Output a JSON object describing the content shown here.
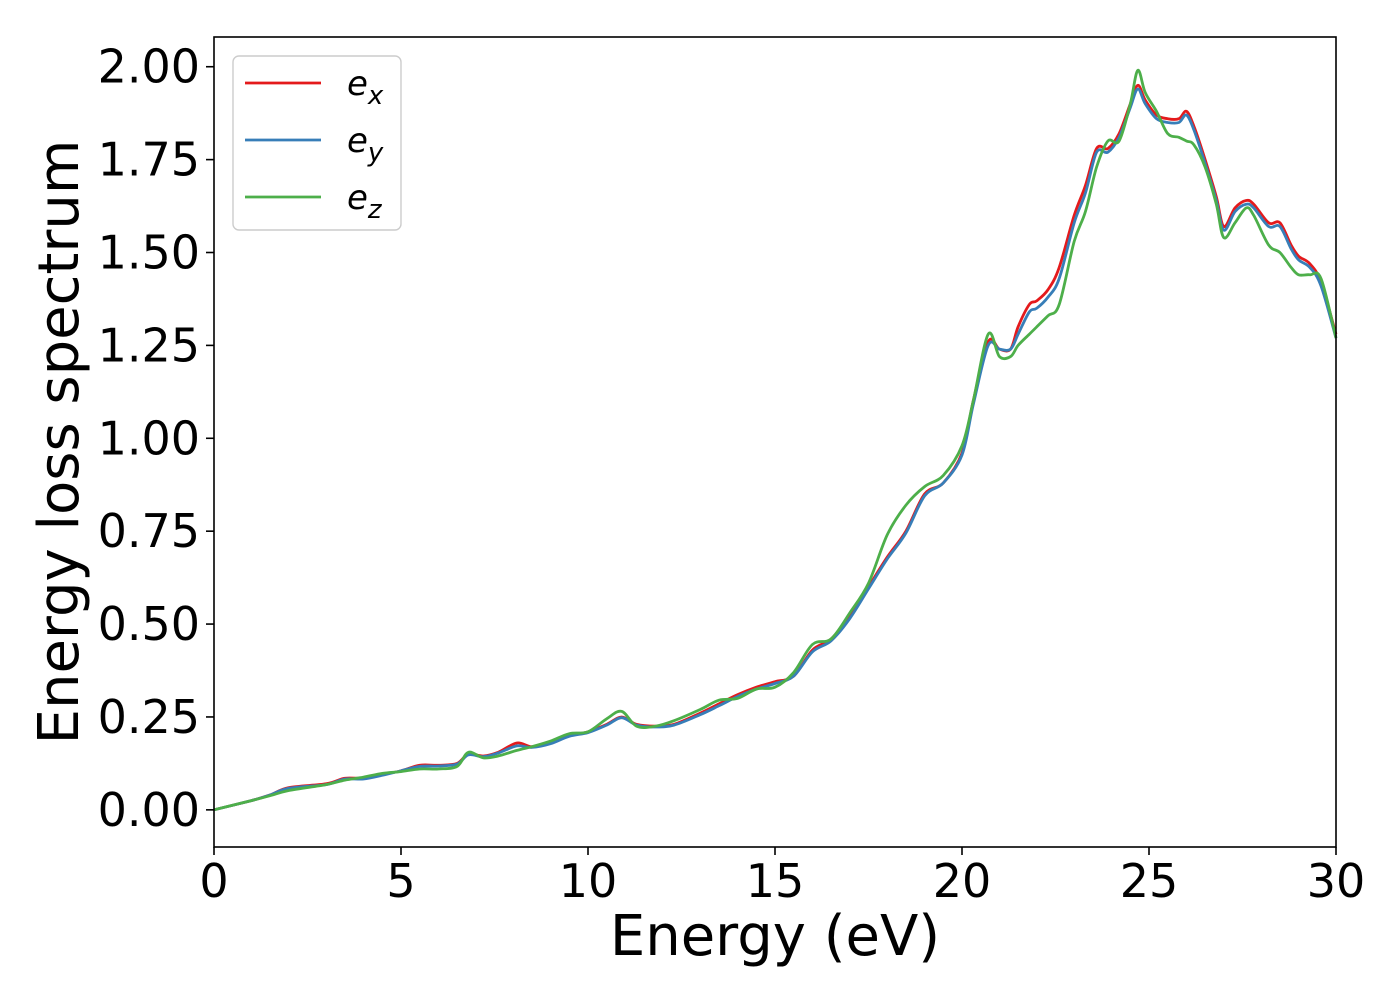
{
  "chart_data": {
    "type": "line",
    "title": "",
    "xlabel": "Energy (eV)",
    "ylabel": "Energy loss spectrum",
    "xlim": [
      0,
      30
    ],
    "ylim": [
      -0.1,
      2.08
    ],
    "xticks": [
      0,
      5,
      10,
      15,
      20,
      25,
      30
    ],
    "xtick_labels": [
      "0",
      "5",
      "10",
      "15",
      "20",
      "25",
      "30"
    ],
    "yticks": [
      0,
      0.25,
      0.5,
      0.75,
      1.0,
      1.25,
      1.5,
      1.75,
      2.0
    ],
    "ytick_labels": [
      "0.00",
      "0.25",
      "0.50",
      "0.75",
      "1.00",
      "1.25",
      "1.50",
      "1.75",
      "2.00"
    ],
    "grid": false,
    "legend_position": "top-left",
    "series": [
      {
        "name": "e",
        "subscript": "x",
        "color": "#e41a1c",
        "x": [
          0,
          1,
          1.5,
          2,
          3,
          3.5,
          4,
          4.5,
          5,
          5.5,
          6,
          6.5,
          6.8,
          7.2,
          7.6,
          8.1,
          8.5,
          9,
          9.5,
          10,
          10.5,
          10.9,
          11.3,
          11.8,
          12.3,
          13,
          13.5,
          14,
          14.5,
          15,
          15.5,
          16,
          16.5,
          17,
          17.5,
          18,
          18.5,
          19,
          19.5,
          20,
          20.3,
          20.7,
          21,
          21.3,
          21.5,
          21.8,
          22,
          22.3,
          22.6,
          23,
          23.3,
          23.6,
          23.9,
          24.2,
          24.5,
          24.7,
          24.9,
          25.2,
          25.5,
          25.8,
          26,
          26.2,
          26.5,
          26.8,
          27,
          27.3,
          27.6,
          27.8,
          28.2,
          28.5,
          28.8,
          29,
          29.3,
          29.6,
          30
        ],
        "y": [
          0,
          0.025,
          0.04,
          0.06,
          0.07,
          0.085,
          0.085,
          0.095,
          0.105,
          0.12,
          0.12,
          0.125,
          0.15,
          0.145,
          0.155,
          0.18,
          0.17,
          0.18,
          0.2,
          0.21,
          0.23,
          0.25,
          0.23,
          0.225,
          0.23,
          0.26,
          0.285,
          0.31,
          0.33,
          0.345,
          0.36,
          0.43,
          0.46,
          0.52,
          0.6,
          0.68,
          0.75,
          0.85,
          0.88,
          0.96,
          1.1,
          1.26,
          1.24,
          1.24,
          1.3,
          1.36,
          1.37,
          1.4,
          1.46,
          1.6,
          1.68,
          1.78,
          1.78,
          1.82,
          1.9,
          1.95,
          1.91,
          1.87,
          1.86,
          1.86,
          1.88,
          1.84,
          1.75,
          1.65,
          1.57,
          1.62,
          1.64,
          1.63,
          1.58,
          1.58,
          1.52,
          1.49,
          1.47,
          1.42,
          1.28
        ]
      },
      {
        "name": "e",
        "subscript": "y",
        "color": "#377eb8",
        "x": [
          0,
          1,
          1.5,
          2,
          3,
          3.5,
          4,
          4.5,
          5,
          5.5,
          6,
          6.5,
          6.8,
          7.2,
          7.6,
          8.1,
          8.5,
          9,
          9.5,
          10,
          10.5,
          10.9,
          11.3,
          11.8,
          12.3,
          13,
          13.5,
          14,
          14.5,
          15,
          15.5,
          16,
          16.5,
          17,
          17.5,
          18,
          18.5,
          19,
          19.5,
          20,
          20.3,
          20.7,
          21,
          21.3,
          21.5,
          21.8,
          22,
          22.3,
          22.6,
          23,
          23.3,
          23.6,
          23.9,
          24.2,
          24.5,
          24.7,
          24.9,
          25.2,
          25.5,
          25.8,
          26,
          26.2,
          26.5,
          26.8,
          27,
          27.3,
          27.6,
          27.8,
          28.2,
          28.5,
          28.8,
          29,
          29.3,
          29.6,
          30
        ],
        "y": [
          0,
          0.025,
          0.04,
          0.058,
          0.068,
          0.083,
          0.083,
          0.093,
          0.105,
          0.117,
          0.118,
          0.123,
          0.148,
          0.143,
          0.153,
          0.172,
          0.168,
          0.178,
          0.198,
          0.208,
          0.228,
          0.248,
          0.228,
          0.223,
          0.228,
          0.256,
          0.28,
          0.305,
          0.325,
          0.34,
          0.36,
          0.425,
          0.455,
          0.515,
          0.595,
          0.675,
          0.745,
          0.845,
          0.88,
          0.955,
          1.09,
          1.25,
          1.24,
          1.24,
          1.28,
          1.34,
          1.35,
          1.38,
          1.43,
          1.58,
          1.66,
          1.77,
          1.77,
          1.81,
          1.89,
          1.94,
          1.9,
          1.86,
          1.85,
          1.85,
          1.87,
          1.83,
          1.74,
          1.64,
          1.56,
          1.61,
          1.63,
          1.62,
          1.57,
          1.57,
          1.51,
          1.48,
          1.46,
          1.41,
          1.27
        ]
      },
      {
        "name": "e",
        "subscript": "z",
        "color": "#4daf4a",
        "x": [
          0,
          1,
          1.5,
          2,
          3,
          3.5,
          4,
          4.5,
          5,
          5.5,
          6,
          6.5,
          6.8,
          7.2,
          7.6,
          8.1,
          8.5,
          9,
          9.5,
          10,
          10.5,
          10.9,
          11.3,
          11.8,
          12.3,
          13,
          13.5,
          14,
          14.5,
          15,
          15.5,
          16,
          16.5,
          17,
          17.5,
          18,
          18.5,
          19,
          19.5,
          20,
          20.3,
          20.7,
          21,
          21.3,
          21.5,
          21.8,
          22,
          22.3,
          22.6,
          23,
          23.3,
          23.6,
          23.9,
          24.2,
          24.5,
          24.7,
          24.9,
          25.2,
          25.5,
          25.8,
          26,
          26.2,
          26.5,
          26.8,
          27,
          27.3,
          27.6,
          27.8,
          28.2,
          28.5,
          28.8,
          29,
          29.3,
          29.6,
          30
        ],
        "y": [
          0,
          0.025,
          0.038,
          0.052,
          0.068,
          0.08,
          0.088,
          0.098,
          0.103,
          0.11,
          0.11,
          0.117,
          0.155,
          0.14,
          0.145,
          0.16,
          0.17,
          0.185,
          0.205,
          0.21,
          0.245,
          0.265,
          0.225,
          0.225,
          0.24,
          0.27,
          0.295,
          0.3,
          0.325,
          0.33,
          0.37,
          0.445,
          0.46,
          0.53,
          0.61,
          0.74,
          0.82,
          0.87,
          0.9,
          0.98,
          1.1,
          1.28,
          1.22,
          1.22,
          1.25,
          1.28,
          1.3,
          1.33,
          1.36,
          1.53,
          1.61,
          1.73,
          1.8,
          1.8,
          1.9,
          1.99,
          1.93,
          1.88,
          1.82,
          1.81,
          1.8,
          1.79,
          1.73,
          1.63,
          1.54,
          1.58,
          1.62,
          1.6,
          1.52,
          1.5,
          1.46,
          1.44,
          1.44,
          1.43,
          1.27
        ]
      }
    ]
  }
}
